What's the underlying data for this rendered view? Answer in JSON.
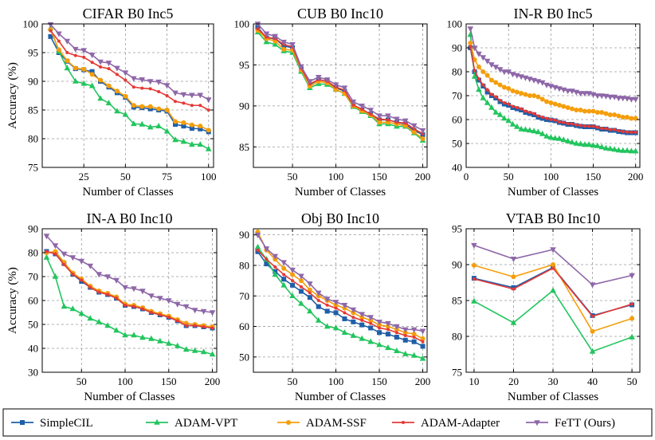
{
  "legend": [
    {
      "name": "SimpleCIL",
      "color": "#1f5fa8",
      "marker": "square"
    },
    {
      "name": "ADAM-VPT",
      "color": "#22c55e",
      "marker": "triangle-up"
    },
    {
      "name": "ADAM-SSF",
      "color": "#f59e0b",
      "marker": "circle"
    },
    {
      "name": "ADAM-Adapter",
      "color": "#e53935",
      "marker": "dot"
    },
    {
      "name": "FeTT (Ours)",
      "color": "#8e67a8",
      "marker": "triangle-down"
    }
  ],
  "chart_data": [
    {
      "type": "line",
      "title": "CIFAR B0 Inc5",
      "xlabel": "Number of Classes",
      "ylabel": "Accuracy (%)",
      "xlim": [
        0,
        103
      ],
      "ylim": [
        75,
        100
      ],
      "xticks": [
        25,
        50,
        75,
        100
      ],
      "xtick_labels": [
        "25",
        "50",
        "75",
        "100"
      ],
      "yticks": [
        75,
        80,
        85,
        90,
        95,
        100
      ],
      "ytick_labels": [
        "75",
        "80",
        "85",
        "90",
        "95",
        "100"
      ],
      "x": [
        5,
        10,
        15,
        20,
        25,
        30,
        35,
        40,
        45,
        50,
        55,
        60,
        65,
        70,
        75,
        80,
        85,
        90,
        95,
        100
      ],
      "series": [
        {
          "name": "SimpleCIL",
          "values": [
            97.8,
            95.0,
            93.5,
            92.2,
            92.0,
            91.7,
            90.0,
            89.0,
            88.0,
            87.2,
            85.5,
            85.4,
            85.2,
            85.0,
            84.8,
            82.5,
            82.2,
            81.8,
            81.7,
            81.2
          ]
        },
        {
          "name": "ADAM-VPT",
          "values": [
            99.3,
            95.2,
            92.3,
            90.0,
            89.6,
            89.2,
            87.0,
            86.2,
            84.8,
            84.2,
            82.6,
            82.5,
            82.0,
            82.2,
            81.3,
            79.8,
            79.5,
            79.0,
            79.0,
            78.2
          ]
        },
        {
          "name": "ADAM-SSF",
          "values": [
            99.0,
            95.5,
            93.6,
            92.3,
            92.1,
            91.2,
            90.2,
            89.2,
            88.3,
            87.4,
            85.8,
            85.6,
            85.6,
            85.2,
            85.0,
            83.0,
            82.8,
            82.4,
            82.2,
            81.5
          ]
        },
        {
          "name": "ADAM-Adapter",
          "values": [
            98.8,
            97.0,
            95.0,
            94.5,
            94.2,
            93.3,
            92.5,
            92.2,
            91.2,
            90.2,
            89.0,
            88.8,
            88.7,
            88.2,
            87.5,
            86.5,
            86.2,
            85.8,
            85.8,
            85.0
          ]
        },
        {
          "name": "FeTT (Ours)",
          "values": [
            99.9,
            98.3,
            97.0,
            95.6,
            95.4,
            94.6,
            93.4,
            93.2,
            92.3,
            91.5,
            90.5,
            90.3,
            90.0,
            89.9,
            89.3,
            88.0,
            87.7,
            87.6,
            87.6,
            86.8
          ]
        }
      ]
    },
    {
      "type": "line",
      "title": "CUB B0 Inc10",
      "xlabel": "Number of Classes",
      "ylabel": "",
      "xlim": [
        5,
        205
      ],
      "ylim": [
        82.5,
        100
      ],
      "xticks": [
        50,
        100,
        150,
        200
      ],
      "xtick_labels": [
        "50",
        "100",
        "150",
        "200"
      ],
      "yticks": [
        85,
        90,
        95,
        100
      ],
      "ytick_labels": [
        "85",
        "90",
        "95",
        "100"
      ],
      "x": [
        10,
        20,
        30,
        40,
        50,
        60,
        70,
        80,
        90,
        100,
        110,
        120,
        130,
        140,
        150,
        160,
        170,
        180,
        190,
        200
      ],
      "series": [
        {
          "name": "SimpleCIL",
          "values": [
            99.6,
            98.3,
            98.2,
            97.3,
            97.1,
            94.5,
            92.6,
            93.2,
            93.0,
            92.2,
            91.8,
            90.0,
            89.5,
            89.0,
            88.3,
            88.3,
            88.0,
            87.8,
            87.0,
            86.5
          ]
        },
        {
          "name": "ADAM-VPT",
          "values": [
            99.0,
            97.8,
            97.5,
            96.7,
            96.5,
            94.2,
            92.2,
            92.7,
            92.6,
            92.0,
            91.5,
            89.9,
            89.3,
            88.8,
            87.8,
            87.8,
            87.5,
            87.5,
            86.7,
            85.8
          ]
        },
        {
          "name": "ADAM-SSF",
          "values": [
            99.2,
            98.2,
            97.9,
            96.9,
            96.8,
            94.4,
            92.4,
            93.0,
            92.8,
            92.0,
            91.5,
            90.0,
            89.4,
            88.9,
            88.0,
            88.0,
            87.8,
            87.6,
            86.8,
            86.0
          ]
        },
        {
          "name": "ADAM-Adapter",
          "values": [
            99.4,
            98.4,
            98.2,
            97.5,
            97.2,
            94.6,
            92.7,
            93.2,
            93.0,
            92.3,
            91.9,
            90.1,
            89.6,
            89.0,
            88.4,
            88.3,
            88.0,
            87.9,
            87.2,
            86.6
          ]
        },
        {
          "name": "FeTT (Ours)",
          "values": [
            100.0,
            98.8,
            98.5,
            97.8,
            97.5,
            94.8,
            93.0,
            93.5,
            93.2,
            92.6,
            92.2,
            90.5,
            90.0,
            89.5,
            88.8,
            88.8,
            88.4,
            88.2,
            87.6,
            87.0
          ]
        }
      ]
    },
    {
      "type": "line",
      "title": "IN-R B0 Inc5",
      "xlabel": "Number of Classes",
      "ylabel": "",
      "xlim": [
        0,
        205
      ],
      "ylim": [
        40,
        100
      ],
      "xticks": [
        0,
        50,
        100,
        150,
        200
      ],
      "xtick_labels": [
        "0",
        "50",
        "100",
        "150",
        "200"
      ],
      "yticks": [
        40,
        50,
        60,
        70,
        80,
        90,
        100
      ],
      "ytick_labels": [
        "40",
        "50",
        "60",
        "70",
        "80",
        "90",
        "100"
      ],
      "x": [
        5,
        10,
        15,
        20,
        25,
        30,
        35,
        40,
        45,
        50,
        55,
        60,
        65,
        70,
        75,
        80,
        85,
        90,
        95,
        100,
        105,
        110,
        115,
        120,
        125,
        130,
        135,
        140,
        145,
        150,
        155,
        160,
        165,
        170,
        175,
        180,
        185,
        190,
        195,
        200
      ],
      "series": [
        {
          "name": "SimpleCIL",
          "values": [
            90.0,
            80.0,
            76.5,
            74.0,
            71.5,
            70.0,
            69.0,
            67.5,
            66.5,
            66.0,
            65.0,
            64.5,
            64.0,
            63.0,
            62.5,
            62.0,
            61.0,
            60.5,
            60.0,
            59.8,
            59.5,
            58.8,
            58.5,
            58.0,
            58.0,
            57.5,
            57.2,
            57.0,
            57.0,
            57.0,
            56.5,
            56.0,
            56.0,
            55.5,
            55.5,
            55.0,
            54.8,
            54.5,
            54.5,
            54.5
          ]
        },
        {
          "name": "ADAM-VPT",
          "values": [
            95.5,
            78.0,
            72.5,
            69.0,
            67.0,
            65.0,
            63.0,
            62.0,
            60.5,
            59.5,
            58.0,
            57.0,
            56.0,
            55.8,
            55.5,
            55.2,
            54.8,
            54.0,
            53.0,
            52.5,
            52.2,
            52.0,
            51.5,
            51.0,
            50.5,
            50.0,
            49.8,
            49.5,
            49.5,
            49.2,
            49.0,
            48.5,
            48.0,
            47.8,
            47.5,
            47.2,
            47.0,
            47.0,
            46.8,
            46.8
          ]
        },
        {
          "name": "ADAM-SSF",
          "values": [
            92.0,
            85.0,
            82.0,
            80.0,
            78.5,
            76.5,
            75.5,
            74.5,
            73.5,
            73.0,
            72.0,
            71.5,
            71.0,
            70.5,
            70.0,
            70.0,
            69.5,
            68.5,
            67.5,
            67.0,
            66.5,
            66.0,
            65.5,
            65.0,
            64.5,
            64.0,
            64.0,
            63.5,
            63.5,
            63.5,
            63.0,
            63.0,
            62.5,
            62.0,
            62.0,
            61.5,
            61.0,
            61.0,
            60.5,
            60.5
          ]
        },
        {
          "name": "ADAM-Adapter",
          "values": [
            90.5,
            80.5,
            77.0,
            74.5,
            72.5,
            70.5,
            69.5,
            68.0,
            67.0,
            66.5,
            65.5,
            65.0,
            64.5,
            63.5,
            63.0,
            62.5,
            61.5,
            61.0,
            60.5,
            60.0,
            59.8,
            59.0,
            58.8,
            58.3,
            58.2,
            57.8,
            57.5,
            57.3,
            57.2,
            57.2,
            56.8,
            56.3,
            56.2,
            55.8,
            55.8,
            55.3,
            55.0,
            54.8,
            54.7,
            54.7
          ]
        },
        {
          "name": "FeTT (Ours)",
          "values": [
            98.0,
            90.0,
            87.5,
            86.0,
            84.5,
            83.0,
            82.0,
            81.0,
            80.0,
            80.0,
            79.0,
            78.5,
            78.0,
            77.5,
            77.0,
            76.5,
            76.0,
            75.5,
            74.5,
            74.0,
            73.5,
            73.0,
            72.5,
            72.0,
            72.0,
            71.5,
            71.0,
            71.0,
            71.0,
            70.5,
            70.0,
            70.0,
            69.8,
            69.5,
            69.5,
            69.0,
            69.0,
            68.8,
            68.5,
            68.5
          ]
        }
      ]
    },
    {
      "type": "line",
      "title": "IN-A B0 Inc10",
      "xlabel": "Number of Classes",
      "ylabel": "Accuracy (%)",
      "xlim": [
        5,
        205
      ],
      "ylim": [
        30,
        90
      ],
      "xticks": [
        50,
        100,
        150,
        200
      ],
      "xtick_labels": [
        "50",
        "100",
        "150",
        "200"
      ],
      "yticks": [
        30,
        40,
        50,
        60,
        70,
        80,
        90
      ],
      "ytick_labels": [
        "30",
        "40",
        "50",
        "60",
        "70",
        "80",
        "90"
      ],
      "x": [
        10,
        20,
        30,
        40,
        50,
        60,
        70,
        80,
        90,
        100,
        110,
        120,
        130,
        140,
        150,
        160,
        170,
        180,
        190,
        200
      ],
      "series": [
        {
          "name": "SimpleCIL",
          "values": [
            80.5,
            79.5,
            75.5,
            71.0,
            68.0,
            65.5,
            63.5,
            62.5,
            61.0,
            58.0,
            57.5,
            56.5,
            55.0,
            54.0,
            53.0,
            51.5,
            49.5,
            49.5,
            49.0,
            48.5
          ]
        },
        {
          "name": "ADAM-VPT",
          "values": [
            78.0,
            70.0,
            57.5,
            56.5,
            54.5,
            52.5,
            51.0,
            49.5,
            47.5,
            45.5,
            45.5,
            44.5,
            44.0,
            43.0,
            42.0,
            41.0,
            39.5,
            39.0,
            38.5,
            37.5
          ]
        },
        {
          "name": "ADAM-SSF",
          "values": [
            80.0,
            80.5,
            76.0,
            71.5,
            69.0,
            66.0,
            64.0,
            63.0,
            61.5,
            58.5,
            58.0,
            57.0,
            55.5,
            54.5,
            53.5,
            52.0,
            50.5,
            50.0,
            49.5,
            49.0
          ]
        },
        {
          "name": "ADAM-Adapter",
          "values": [
            80.5,
            79.5,
            75.0,
            71.0,
            68.5,
            65.5,
            63.5,
            62.5,
            61.0,
            58.0,
            57.5,
            56.5,
            55.0,
            54.0,
            53.0,
            51.5,
            49.5,
            49.5,
            49.0,
            48.5
          ]
        },
        {
          "name": "FeTT (Ours)",
          "values": [
            87.0,
            83.0,
            79.5,
            78.0,
            76.5,
            74.5,
            71.0,
            70.0,
            68.5,
            65.5,
            65.0,
            64.0,
            62.0,
            61.0,
            60.0,
            58.5,
            57.5,
            56.0,
            55.5,
            55.0
          ]
        }
      ]
    },
    {
      "type": "line",
      "title": "Obj B0 Inc10",
      "xlabel": "Number of Classes",
      "ylabel": "",
      "xlim": [
        5,
        205
      ],
      "ylim": [
        45,
        92
      ],
      "xticks": [
        50,
        100,
        150,
        200
      ],
      "xtick_labels": [
        "50",
        "100",
        "150",
        "200"
      ],
      "yticks": [
        50,
        60,
        70,
        80,
        90
      ],
      "ytick_labels": [
        "50",
        "60",
        "70",
        "80",
        "90"
      ],
      "x": [
        10,
        20,
        30,
        40,
        50,
        60,
        70,
        80,
        90,
        100,
        110,
        120,
        130,
        140,
        150,
        160,
        170,
        180,
        190,
        200
      ],
      "series": [
        {
          "name": "SimpleCIL",
          "values": [
            84.5,
            80.5,
            78.0,
            75.5,
            73.5,
            71.5,
            69.5,
            66.5,
            65.0,
            64.5,
            62.5,
            61.5,
            60.5,
            59.5,
            58.0,
            57.5,
            56.5,
            55.5,
            55.0,
            53.5
          ]
        },
        {
          "name": "ADAM-VPT",
          "values": [
            86.0,
            82.0,
            77.0,
            73.5,
            70.0,
            67.5,
            65.0,
            62.0,
            60.0,
            59.5,
            58.0,
            57.0,
            56.0,
            55.0,
            54.0,
            53.0,
            52.0,
            51.0,
            50.5,
            49.5
          ]
        },
        {
          "name": "ADAM-SSF",
          "values": [
            91.0,
            85.0,
            82.0,
            79.0,
            77.0,
            75.0,
            72.0,
            70.0,
            68.5,
            67.0,
            66.0,
            64.5,
            63.0,
            62.0,
            60.5,
            60.0,
            59.0,
            58.0,
            57.5,
            56.0
          ]
        },
        {
          "name": "ADAM-Adapter",
          "values": [
            85.0,
            82.0,
            79.5,
            77.0,
            75.0,
            73.0,
            71.0,
            68.5,
            67.0,
            66.0,
            64.5,
            63.0,
            62.0,
            61.0,
            59.5,
            59.0,
            58.0,
            57.0,
            56.5,
            55.0
          ]
        },
        {
          "name": "FeTT (Ours)",
          "values": [
            90.0,
            85.5,
            83.0,
            81.0,
            78.5,
            76.5,
            74.0,
            71.0,
            69.0,
            68.0,
            67.0,
            65.5,
            64.0,
            63.0,
            61.5,
            61.0,
            60.0,
            59.0,
            59.0,
            58.5
          ]
        }
      ]
    },
    {
      "type": "line",
      "title": "VTAB B0 Inc10",
      "xlabel": "Number of Classes",
      "ylabel": "",
      "xlim": [
        8,
        52
      ],
      "ylim": [
        75,
        95
      ],
      "xticks": [
        10,
        20,
        30,
        40,
        50
      ],
      "xtick_labels": [
        "10",
        "20",
        "30",
        "40",
        "50"
      ],
      "yticks": [
        75,
        80,
        85,
        90,
        95
      ],
      "ytick_labels": [
        "75",
        "80",
        "85",
        "90",
        "95"
      ],
      "x": [
        10,
        20,
        30,
        40,
        50
      ],
      "series": [
        {
          "name": "SimpleCIL",
          "values": [
            88.1,
            86.8,
            89.6,
            82.9,
            84.4
          ]
        },
        {
          "name": "ADAM-VPT",
          "values": [
            84.9,
            81.9,
            86.4,
            77.9,
            79.9
          ]
        },
        {
          "name": "ADAM-SSF",
          "values": [
            89.9,
            88.3,
            90.0,
            80.7,
            82.5
          ]
        },
        {
          "name": "ADAM-Adapter",
          "values": [
            88.0,
            86.6,
            89.5,
            82.8,
            84.5
          ]
        },
        {
          "name": "FeTT (Ours)",
          "values": [
            92.7,
            90.8,
            92.1,
            87.2,
            88.5
          ]
        }
      ]
    }
  ]
}
